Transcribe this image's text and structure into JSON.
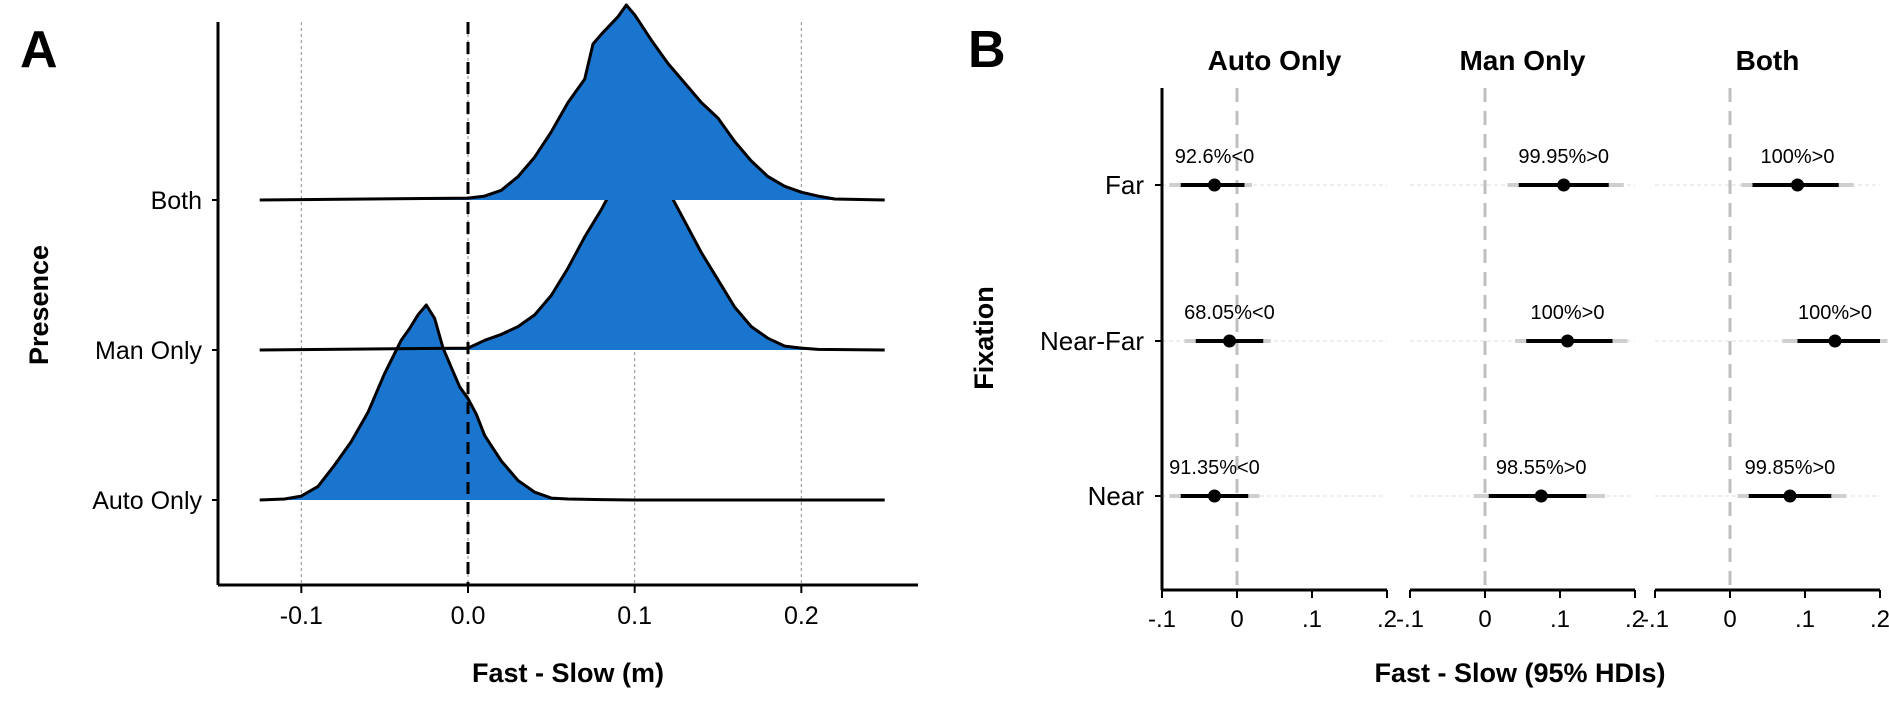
{
  "colors": {
    "fill": "#1a75cf",
    "outline": "#000000",
    "zero_line": "#bfbfbf",
    "grid": "#bdbdbd",
    "interval_outer": "#cfcfcf"
  },
  "chart_data": [
    {
      "panel": "A",
      "type": "area",
      "xlabel": "Fast - Slow (m)",
      "ylabel": "Presence",
      "xlim": [
        -0.125,
        0.25
      ],
      "xticks": [
        -0.1,
        0.0,
        0.1,
        0.2
      ],
      "xtick_labels": [
        "-0.1",
        "0.0",
        "0.1",
        "0.2"
      ],
      "vline": 0.0,
      "grid": "vertical-dotted",
      "series": [
        {
          "name": "Auto Only",
          "x": [
            -0.125,
            -0.11,
            -0.1,
            -0.09,
            -0.08,
            -0.07,
            -0.06,
            -0.05,
            -0.04,
            -0.035,
            -0.03,
            -0.025,
            -0.02,
            -0.015,
            -0.01,
            -0.005,
            0.0,
            0.005,
            0.01,
            0.02,
            0.03,
            0.04,
            0.05,
            0.06,
            0.08,
            0.1,
            0.25
          ],
          "density": [
            0,
            0.005,
            0.02,
            0.07,
            0.18,
            0.3,
            0.45,
            0.65,
            0.82,
            0.88,
            0.95,
            1.0,
            0.93,
            0.78,
            0.68,
            0.58,
            0.52,
            0.44,
            0.33,
            0.2,
            0.1,
            0.04,
            0.01,
            0.005,
            0.002,
            0,
            0
          ]
        },
        {
          "name": "Man Only",
          "x": [
            -0.125,
            0.0,
            0.01,
            0.02,
            0.03,
            0.04,
            0.05,
            0.06,
            0.07,
            0.08,
            0.085,
            0.09,
            0.1,
            0.105,
            0.11,
            0.12,
            0.13,
            0.14,
            0.15,
            0.16,
            0.17,
            0.18,
            0.19,
            0.2,
            0.21,
            0.25
          ],
          "density": [
            0,
            0.01,
            0.05,
            0.08,
            0.12,
            0.18,
            0.28,
            0.42,
            0.58,
            0.72,
            0.8,
            0.78,
            0.92,
            1.0,
            0.96,
            0.82,
            0.66,
            0.5,
            0.36,
            0.22,
            0.12,
            0.06,
            0.02,
            0.01,
            0.003,
            0
          ]
        },
        {
          "name": "Both",
          "x": [
            -0.125,
            0.0,
            0.01,
            0.02,
            0.03,
            0.04,
            0.05,
            0.06,
            0.07,
            0.075,
            0.08,
            0.09,
            0.095,
            0.1,
            0.11,
            0.12,
            0.13,
            0.14,
            0.15,
            0.16,
            0.17,
            0.18,
            0.19,
            0.2,
            0.21,
            0.22,
            0.25
          ],
          "density": [
            0,
            0.01,
            0.02,
            0.05,
            0.12,
            0.22,
            0.35,
            0.5,
            0.62,
            0.8,
            0.85,
            0.94,
            1.0,
            0.95,
            0.82,
            0.7,
            0.6,
            0.5,
            0.42,
            0.3,
            0.2,
            0.12,
            0.07,
            0.04,
            0.02,
            0.005,
            0
          ]
        }
      ]
    },
    {
      "panel": "B",
      "type": "scatter",
      "xlabel": "Fast - Slow (95% HDIs)",
      "ylabel": "Fixation",
      "xlim": [
        -0.1,
        0.2
      ],
      "xticks": [
        -0.1,
        0,
        0.1,
        0.2
      ],
      "xtick_labels": [
        "-.1",
        "0",
        ".1",
        ".2"
      ],
      "vline": 0,
      "facets": [
        "Auto Only",
        "Man Only",
        "Both"
      ],
      "rows": [
        "Far",
        "Near-Far",
        "Near"
      ],
      "points": [
        {
          "facet": "Auto Only",
          "row": "Far",
          "estimate": -0.03,
          "inner": [
            -0.075,
            0.01
          ],
          "outer": [
            -0.09,
            0.02
          ],
          "label": "92.6%<0"
        },
        {
          "facet": "Auto Only",
          "row": "Near-Far",
          "estimate": -0.01,
          "inner": [
            -0.055,
            0.035
          ],
          "outer": [
            -0.07,
            0.045
          ],
          "label": "68.05%<0"
        },
        {
          "facet": "Auto Only",
          "row": "Near",
          "estimate": -0.03,
          "inner": [
            -0.075,
            0.015
          ],
          "outer": [
            -0.09,
            0.03
          ],
          "label": "91.35%<0"
        },
        {
          "facet": "Man Only",
          "row": "Far",
          "estimate": 0.105,
          "inner": [
            0.045,
            0.165
          ],
          "outer": [
            0.03,
            0.185
          ],
          "label": "99.95%>0"
        },
        {
          "facet": "Man Only",
          "row": "Near-Far",
          "estimate": 0.11,
          "inner": [
            0.055,
            0.17
          ],
          "outer": [
            0.04,
            0.19
          ],
          "label": "100%>0"
        },
        {
          "facet": "Man Only",
          "row": "Near",
          "estimate": 0.075,
          "inner": [
            0.005,
            0.135
          ],
          "outer": [
            -0.015,
            0.16
          ],
          "label": "98.55%>0"
        },
        {
          "facet": "Both",
          "row": "Far",
          "estimate": 0.09,
          "inner": [
            0.03,
            0.145
          ],
          "outer": [
            0.015,
            0.165
          ],
          "label": "100%>0"
        },
        {
          "facet": "Both",
          "row": "Near-Far",
          "estimate": 0.14,
          "inner": [
            0.09,
            0.2
          ],
          "outer": [
            0.07,
            0.21
          ],
          "label": "100%>0"
        },
        {
          "facet": "Both",
          "row": "Near",
          "estimate": 0.08,
          "inner": [
            0.025,
            0.135
          ],
          "outer": [
            0.01,
            0.155
          ],
          "label": "99.85%>0"
        }
      ]
    }
  ]
}
